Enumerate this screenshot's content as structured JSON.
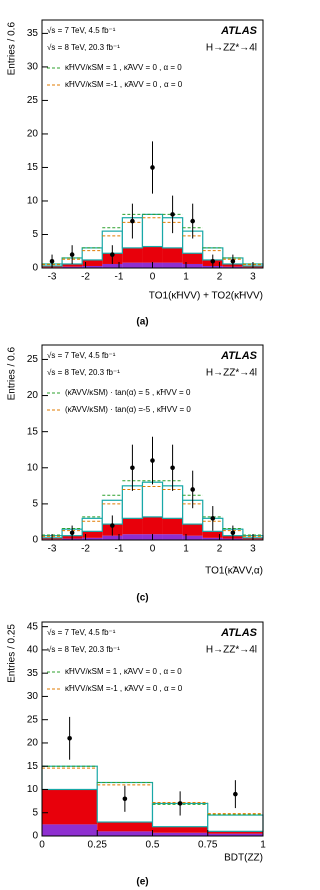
{
  "chart_data": [
    {
      "type": "histogram",
      "ylabel": "Entries / 0.6",
      "xlabel": "TO1(κ̃HVV) + TO2(κ̃HVV)",
      "caption": "(a)",
      "experiment": "ATLAS",
      "process": "H→ZZ*→4l",
      "energy": [
        "√s = 7 TeV, 4.5 fb⁻¹",
        "√s = 8 TeV, 20.3 fb⁻¹"
      ],
      "bins": [
        -3.3,
        -2.7,
        -2.1,
        -1.5,
        -0.9,
        -0.3,
        0.3,
        0.9,
        1.5,
        2.1,
        2.7,
        3.3
      ],
      "xlim": [
        -3.3,
        3.3
      ],
      "xticks": [
        -3,
        -2,
        -1,
        0,
        1,
        2,
        3
      ],
      "ylim": [
        0,
        37
      ],
      "yticks": [
        0,
        5,
        10,
        15,
        20,
        25,
        30,
        35
      ],
      "stack": [
        {
          "color": "#8e2fd0",
          "values": [
            0.1,
            0.2,
            0.3,
            0.6,
            0.8,
            0.8,
            0.8,
            0.6,
            0.3,
            0.2,
            0.1
          ]
        },
        {
          "color": "#e8000b",
          "values": [
            0.2,
            0.4,
            0.9,
            1.6,
            2.2,
            2.4,
            2.2,
            1.6,
            0.9,
            0.4,
            0.2
          ]
        },
        {
          "color": "#ffffff",
          "edge": "#18a8a8",
          "values": [
            0.3,
            0.9,
            1.8,
            3.3,
            4.5,
            4.8,
            4.5,
            3.3,
            1.8,
            0.9,
            0.3
          ]
        }
      ],
      "series": [
        {
          "name": "κ̃HVV/κSM = 1 , κ̃AVV = 0 , α = 0",
          "color": "#2ca02c",
          "values": [
            0.6,
            1.5,
            3.0,
            6.0,
            8.0,
            8.0,
            8.0,
            6.0,
            3.0,
            1.5,
            0.6
          ]
        },
        {
          "name": "κ̃HVV/κSM =-1 , κ̃AVV = 0 , α = 0",
          "color": "#e07b00",
          "values": [
            0.5,
            1.3,
            2.6,
            4.8,
            6.8,
            7.5,
            6.8,
            4.8,
            2.6,
            1.3,
            0.5
          ]
        }
      ],
      "points": {
        "x": [
          -3,
          -2.4,
          -1.2,
          -0.6,
          0,
          0.6,
          1.2,
          1.8,
          2.4
        ],
        "values": [
          1,
          2,
          2,
          7,
          15,
          8,
          7,
          1,
          1
        ],
        "errors": [
          1,
          1.4,
          1.4,
          2.6,
          3.9,
          2.8,
          2.6,
          1,
          1
        ]
      }
    },
    {
      "type": "histogram",
      "ylabel": "Entries / 0.6",
      "xlabel": "TO1(κ̃AVV,α)",
      "caption": "(c)",
      "experiment": "ATLAS",
      "process": "H→ZZ*→4l",
      "energy": [
        "√s = 7 TeV, 4.5 fb⁻¹",
        "√s = 8 TeV, 20.3 fb⁻¹"
      ],
      "bins": [
        -3.3,
        -2.7,
        -2.1,
        -1.5,
        -0.9,
        -0.3,
        0.3,
        0.9,
        1.5,
        2.1,
        2.7,
        3.3
      ],
      "xlim": [
        -3.3,
        3.3
      ],
      "xticks": [
        -3,
        -2,
        -1,
        0,
        1,
        2,
        3
      ],
      "ylim": [
        0,
        27
      ],
      "yticks": [
        0,
        5,
        10,
        15,
        20,
        25
      ],
      "stack": [
        {
          "color": "#8e2fd0",
          "values": [
            0.1,
            0.2,
            0.3,
            0.6,
            0.8,
            0.8,
            0.8,
            0.6,
            0.3,
            0.2,
            0.1
          ]
        },
        {
          "color": "#e8000b",
          "values": [
            0.2,
            0.4,
            0.9,
            1.6,
            2.2,
            2.4,
            2.2,
            1.6,
            0.9,
            0.4,
            0.2
          ]
        },
        {
          "color": "#ffffff",
          "edge": "#18a8a8",
          "values": [
            0.3,
            0.9,
            1.8,
            3.3,
            4.5,
            4.8,
            4.5,
            3.3,
            1.8,
            0.9,
            0.3
          ]
        }
      ],
      "series": [
        {
          "name": "(κ̃AVV/κSM) · tan(α) = 5 , κ̃HVV = 0",
          "color": "#2ca02c",
          "values": [
            0.7,
            1.6,
            3.2,
            6.2,
            8.2,
            8.2,
            8.2,
            6.2,
            3.2,
            1.6,
            0.7
          ]
        },
        {
          "name": "(κ̃AVV/κSM) · tan(α) =-5 , κ̃HVV = 0",
          "color": "#e07b00",
          "values": [
            0.5,
            1.3,
            2.6,
            5.0,
            7.0,
            7.4,
            7.0,
            5.0,
            2.6,
            1.3,
            0.5
          ]
        }
      ],
      "points": {
        "x": [
          -2.4,
          -1.2,
          -0.6,
          0,
          0.6,
          1.2,
          1.8,
          2.4
        ],
        "values": [
          1,
          2,
          10,
          11,
          10,
          7,
          3,
          1
        ],
        "errors": [
          1,
          1.4,
          3.2,
          3.3,
          3.2,
          2.6,
          1.7,
          1
        ]
      }
    },
    {
      "type": "histogram",
      "ylabel": "Entries / 0.25",
      "xlabel": "BDT(ZZ)",
      "caption": "(e)",
      "experiment": "ATLAS",
      "process": "H→ZZ*→4l",
      "energy": [
        "√s = 7 TeV, 4.5 fb⁻¹",
        "√s = 8 TeV, 20.3 fb⁻¹"
      ],
      "bins": [
        0,
        0.25,
        0.5,
        0.75,
        1
      ],
      "xlim": [
        0,
        1
      ],
      "xticks": [
        0,
        0.25,
        0.5,
        0.75,
        1
      ],
      "ylim": [
        0,
        46
      ],
      "yticks": [
        0,
        5,
        10,
        15,
        20,
        25,
        30,
        35,
        40,
        45
      ],
      "stack": [
        {
          "color": "#8e2fd0",
          "values": [
            2.5,
            1,
            0.7,
            0.5
          ]
        },
        {
          "color": "#e8000b",
          "values": [
            7.5,
            2,
            1.3,
            0.5
          ]
        },
        {
          "color": "#ffffff",
          "edge": "#18a8a8",
          "values": [
            5,
            8.5,
            5,
            3.5
          ]
        }
      ],
      "series": [
        {
          "name": "κ̃HVV/κSM = 1 , κ̃AVV = 0 , α = 0",
          "color": "#2ca02c",
          "values": [
            15,
            11.5,
            6.8,
            4.6
          ]
        },
        {
          "name": "κ̃HVV/κSM =-1 , κ̃AVV = 0 , α = 0",
          "color": "#e07b00",
          "values": [
            14.6,
            11,
            7.2,
            4.8
          ]
        }
      ],
      "points": {
        "x": [
          0.125,
          0.375,
          0.625,
          0.875
        ],
        "values": [
          21,
          8,
          7,
          9
        ],
        "errors": [
          4.6,
          2.8,
          2.6,
          3
        ]
      }
    }
  ]
}
